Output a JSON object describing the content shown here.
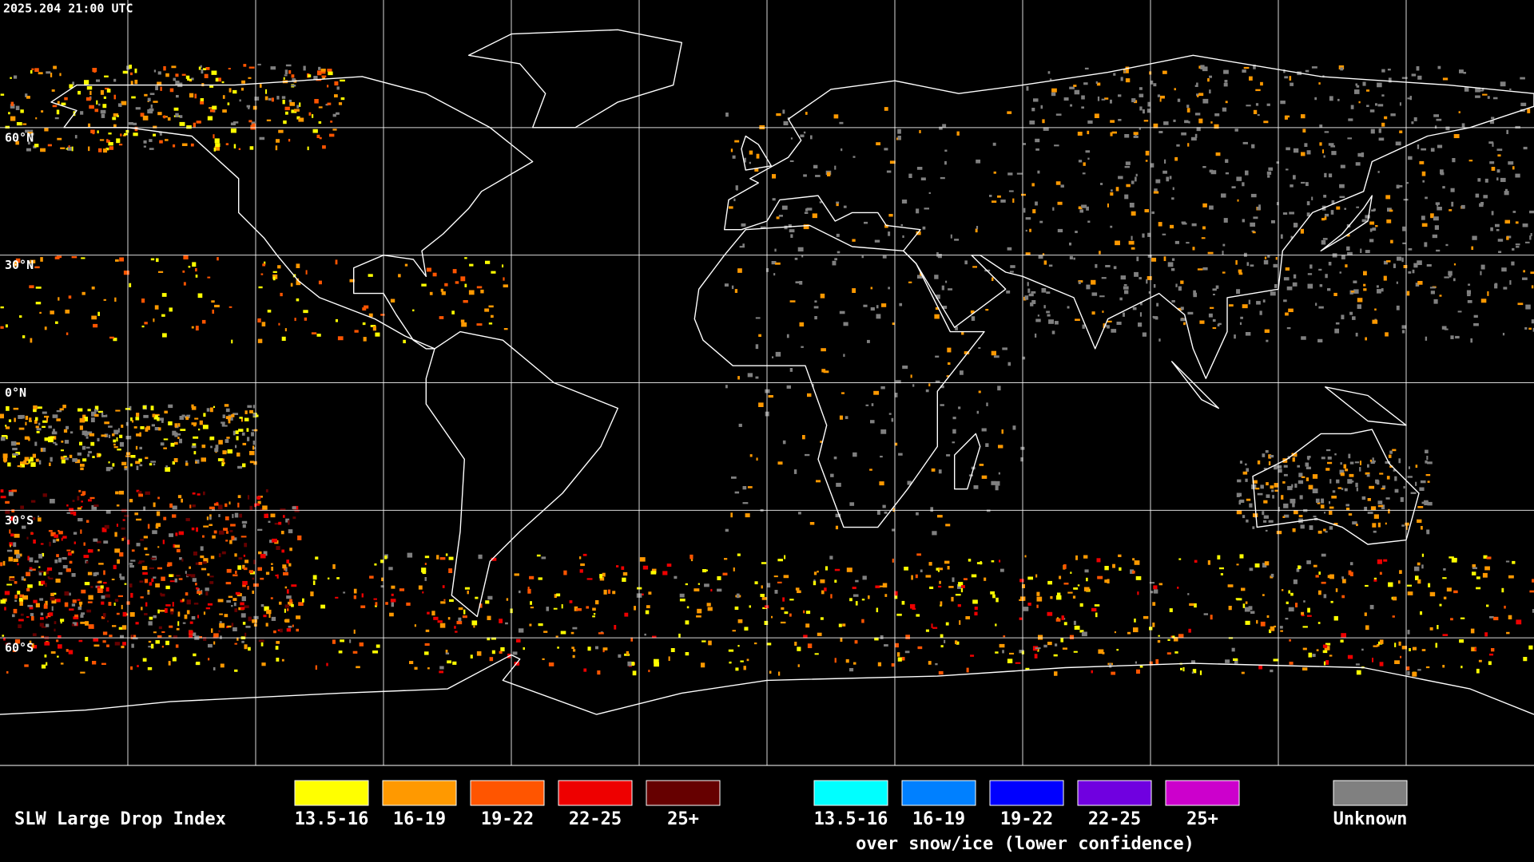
{
  "timestamp": "2025.204 21:00 UTC",
  "latitude_labels": [
    "60°N",
    "30°N",
    "0°N",
    "30°S",
    "60°S"
  ],
  "legend": {
    "title": "SLW Large Drop Index",
    "items": [
      {
        "label": "13.5-16",
        "color": "#ffff00"
      },
      {
        "label": "16-19",
        "color": "#ff9900"
      },
      {
        "label": "19-22",
        "color": "#ff5500"
      },
      {
        "label": "22-25",
        "color": "#ee0000"
      },
      {
        "label": "25+",
        "color": "#660000"
      }
    ],
    "snow_ice_items": [
      {
        "label": "13.5-16",
        "color": "#00ffff"
      },
      {
        "label": "16-19",
        "color": "#0080ff"
      },
      {
        "label": "19-22",
        "color": "#0000ff"
      },
      {
        "label": "22-25",
        "color": "#7000e0"
      },
      {
        "label": "25+",
        "color": "#cc00cc"
      }
    ],
    "snow_ice_caption": "over snow/ice (lower confidence)",
    "unknown": {
      "label": "Unknown",
      "color": "#808080"
    }
  }
}
